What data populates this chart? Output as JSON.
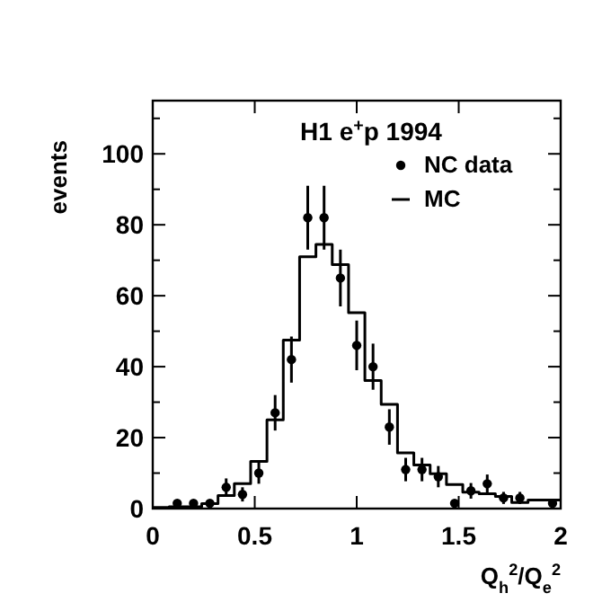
{
  "chart_data": {
    "type": "histogram",
    "title": "H1 e$^{+}$p 1994",
    "ylabel": "events",
    "xlabel": "Q$_{h}$$^{2}$/Q$_{e}$$^{2}$",
    "bins": [
      0,
      0.08,
      0.16,
      0.24,
      0.32,
      0.4,
      0.48,
      0.56,
      0.64,
      0.72,
      0.8,
      0.88,
      0.96,
      1.04,
      1.12,
      1.2,
      1.28,
      1.36,
      1.44,
      1.52,
      1.6,
      1.68,
      1.76,
      1.84,
      1.92,
      2
    ],
    "series": [
      {
        "name": "NC data",
        "type": "scatter",
        "color": "#000000",
        "marker": "circle",
        "x": [
          0.12,
          0.2,
          0.28,
          0.36,
          0.44,
          0.52,
          0.6,
          0.68,
          0.76,
          0.84,
          0.92,
          1.0,
          1.08,
          1.16,
          1.24,
          1.32,
          1.4,
          1.48,
          1.56,
          1.64,
          1.72,
          1.8,
          1.96
        ],
        "values": [
          1.5,
          1.5,
          1.5,
          6,
          4,
          10,
          27,
          42,
          82,
          82,
          65,
          46,
          40,
          23,
          11,
          11,
          9,
          1.5,
          5,
          7,
          3,
          3,
          1.5
        ],
        "errors": [
          null,
          null,
          null,
          2.5,
          2,
          3,
          5,
          6.5,
          9,
          9,
          8,
          7,
          6.5,
          5,
          3.3,
          3.3,
          3,
          null,
          2.2,
          2.6,
          1.7,
          1.7,
          null
        ]
      },
      {
        "name": "MC",
        "color": "#000000",
        "values": [
          0.3,
          0.5,
          0.5,
          1.4,
          3.7,
          7,
          13.3,
          25,
          47.5,
          71,
          74.5,
          68.8,
          55.2,
          36.1,
          29.4,
          15.7,
          12.3,
          9.8,
          6.8,
          4.6,
          4.2,
          3.4,
          1.7,
          2.4,
          2.4
        ]
      }
    ],
    "xlim": [
      0,
      2
    ],
    "ylim": [
      0,
      115
    ],
    "xticks": [
      0,
      0.5,
      1,
      1.5,
      2
    ],
    "yticks": [
      0,
      {
        "value": 10,
        "label": null
      },
      20,
      {
        "value": 30,
        "label": null
      },
      40,
      {
        "value": 50,
        "label": null
      },
      60,
      {
        "value": 70,
        "label": null
      },
      80,
      {
        "value": 90,
        "label": null
      },
      100,
      {
        "value": 110,
        "label": null
      }
    ],
    "legend": "top right",
    "grid": false
  }
}
